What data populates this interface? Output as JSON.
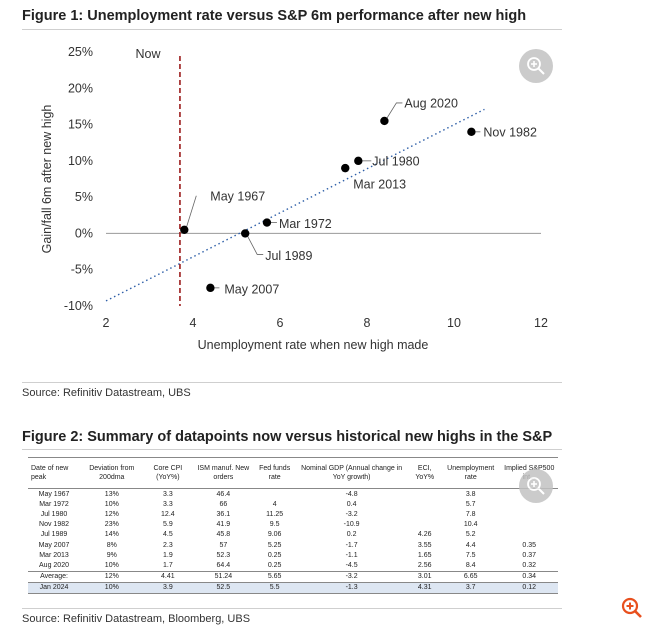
{
  "figure1": {
    "title": "Figure 1: Unemployment rate versus S&P 6m performance after new high",
    "source": "Source: Refinitiv Datastream, UBS"
  },
  "figure2": {
    "title": "Figure 2: Summary of datapoints now versus historical new highs in the S&P",
    "source": "Source: Refinitiv Datastream, Bloomberg, UBS",
    "columns": [
      "Date of new peak",
      "Deviation from 200dma",
      "Core CPI (YoY%)",
      "ISM manuf. New orders",
      "Fed funds rate",
      "Nominal GDP (Annual change in YoY growth)",
      "ECI, YoY%",
      "Unemployment rate",
      "Implied S&P500 int..."
    ],
    "rows": [
      [
        "May 1967",
        "13%",
        "3.3",
        "46.4",
        "",
        "-4.8",
        "",
        "3.8",
        ""
      ],
      [
        "Mar 1972",
        "10%",
        "3.3",
        "66",
        "4",
        "0.4",
        "",
        "5.7",
        ""
      ],
      [
        "Jul 1980",
        "12%",
        "12.4",
        "36.1",
        "11.25",
        "-3.2",
        "",
        "7.8",
        ""
      ],
      [
        "Nov 1982",
        "23%",
        "5.9",
        "41.9",
        "9.5",
        "-10.9",
        "",
        "10.4",
        ""
      ],
      [
        "Jul 1989",
        "14%",
        "4.5",
        "45.8",
        "9.06",
        "0.2",
        "4.26",
        "5.2",
        ""
      ],
      [
        "May 2007",
        "8%",
        "2.3",
        "57",
        "5.25",
        "-1.7",
        "3.55",
        "4.4",
        "0.35"
      ],
      [
        "Mar 2013",
        "9%",
        "1.9",
        "52.3",
        "0.25",
        "-1.1",
        "1.65",
        "7.5",
        "0.37"
      ],
      [
        "Aug 2020",
        "10%",
        "1.7",
        "64.4",
        "0.25",
        "-4.5",
        "2.56",
        "8.4",
        "0.32"
      ]
    ],
    "average": [
      "Average:",
      "12%",
      "4.41",
      "51.24",
      "5.65",
      "-3.2",
      "3.01",
      "6.65",
      "0.34"
    ],
    "current": [
      "Jan 2024",
      "10%",
      "3.9",
      "52.5",
      "5.5",
      "-1.3",
      "4.31",
      "3.7",
      "0.12"
    ]
  },
  "icons": {
    "zoom": "zoom-in-icon",
    "zoom_color": "#e8501e"
  },
  "chart_data": {
    "type": "scatter",
    "title": "Figure 1: Unemployment rate versus S&P 6m performance after new high",
    "xlabel": "Unemployment rate when new high made",
    "ylabel": "Gain/fall 6m after new high",
    "xlim": [
      2,
      12
    ],
    "ylim": [
      -10,
      25
    ],
    "xticks": [
      "2",
      "4",
      "6",
      "8",
      "10",
      "12"
    ],
    "yticks": [
      "-10%",
      "-5%",
      "0%",
      "5%",
      "10%",
      "15%",
      "20%",
      "25%"
    ],
    "points": [
      {
        "label": "May 1967",
        "x": 3.8,
        "y": 0.5
      },
      {
        "label": "Mar 1972",
        "x": 5.7,
        "y": 1.5
      },
      {
        "label": "Jul 1980",
        "x": 7.8,
        "y": 10.0
      },
      {
        "label": "Nov 1982",
        "x": 10.4,
        "y": 14.0
      },
      {
        "label": "Jul 1989",
        "x": 5.2,
        "y": 0.0
      },
      {
        "label": "May 2007",
        "x": 4.4,
        "y": -7.5
      },
      {
        "label": "Mar 2013",
        "x": 7.5,
        "y": 9.0
      },
      {
        "label": "Aug 2020",
        "x": 8.4,
        "y": 15.5
      }
    ],
    "trendline": {
      "x": [
        2,
        10.7
      ],
      "y": [
        -9.3,
        17.1
      ],
      "color": "#2e5fa8"
    },
    "now_line": {
      "x": 3.7,
      "label": "Now",
      "color": "#9b1c1c"
    },
    "point_color": "#000000"
  }
}
